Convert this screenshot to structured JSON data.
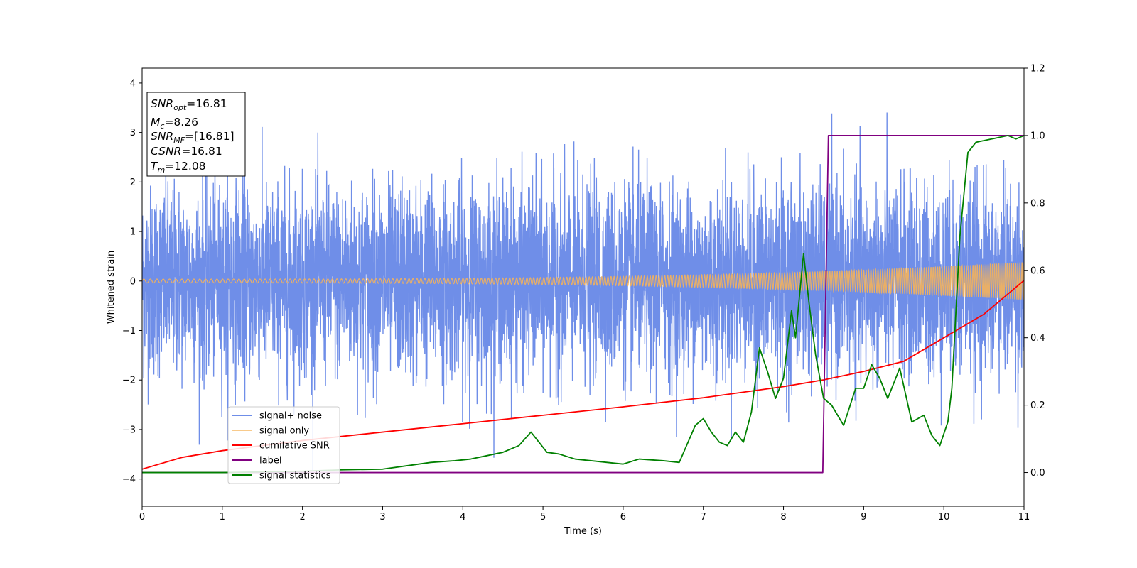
{
  "chart_data": {
    "type": "line",
    "xlabel": "Time (s)",
    "ylabel": "Whitened strain",
    "xlim": [
      0,
      11
    ],
    "ylim_left": [
      -4.55,
      4.3
    ],
    "ylim_right": [
      -0.1,
      1.2
    ],
    "x_ticks": [
      0,
      1,
      2,
      3,
      4,
      5,
      6,
      7,
      8,
      9,
      10,
      11
    ],
    "y_left_ticks": [
      -4,
      -3,
      -2,
      -1,
      0,
      1,
      2,
      3,
      4
    ],
    "y_right_ticks": [
      0.0,
      0.2,
      0.4,
      0.6,
      0.8,
      1.0,
      1.2
    ],
    "legend_position": "lower-left",
    "grid": false,
    "annotation_box": {
      "position": "top-left",
      "lines": [
        {
          "var": "SNR",
          "sub": "opt",
          "value": "=16.81"
        },
        {
          "var": "M",
          "sub": "c",
          "value": "=8.26"
        },
        {
          "var": "SNR",
          "sub": "MF",
          "value": "=[16.81]"
        },
        {
          "var": "CSNR",
          "sub": "",
          "value": "=16.81"
        },
        {
          "var": "T",
          "sub": "m",
          "value": "=12.08"
        }
      ]
    },
    "series": [
      {
        "name": "signal+ noise",
        "axis": "left",
        "color": "#6f8ee8",
        "description_kind": "noise",
        "std": 1.0,
        "range_approx": [
          -3.9,
          3.9
        ]
      },
      {
        "name": "signal only",
        "axis": "left",
        "color": "#f5b35a",
        "description_kind": "chirp",
        "amplitude_start": 0.04,
        "amplitude_end": 0.38
      },
      {
        "name": "cumilative SNR",
        "axis": "right",
        "color": "#ff0000",
        "x": [
          0,
          0.5,
          1,
          2,
          3,
          4,
          5,
          6,
          7,
          8,
          8.5,
          9,
          9.5,
          10,
          10.5,
          11
        ],
        "y": [
          0.01,
          0.045,
          0.065,
          0.095,
          0.12,
          0.145,
          0.17,
          0.195,
          0.222,
          0.255,
          0.275,
          0.3,
          0.33,
          0.4,
          0.47,
          0.57
        ]
      },
      {
        "name": "label",
        "axis": "right",
        "color": "#800080",
        "x": [
          0,
          8.49,
          8.56,
          11
        ],
        "y": [
          0.0,
          0.0,
          1.0,
          1.0
        ]
      },
      {
        "name": "signal statistics",
        "axis": "right",
        "color": "#008000",
        "x": [
          0,
          1,
          2,
          2.5,
          3,
          3.3,
          3.6,
          3.9,
          4.1,
          4.3,
          4.5,
          4.7,
          4.85,
          4.95,
          5.05,
          5.2,
          5.4,
          5.6,
          5.8,
          6.0,
          6.2,
          6.5,
          6.7,
          6.9,
          7.0,
          7.1,
          7.2,
          7.3,
          7.4,
          7.5,
          7.6,
          7.7,
          7.8,
          7.9,
          8.0,
          8.1,
          8.15,
          8.25,
          8.32,
          8.4,
          8.5,
          8.6,
          8.75,
          8.9,
          9.0,
          9.1,
          9.2,
          9.3,
          9.45,
          9.6,
          9.75,
          9.85,
          9.95,
          10.05,
          10.1,
          10.2,
          10.3,
          10.4,
          10.6,
          10.8,
          10.9,
          11
        ],
        "y": [
          0.0,
          0.0,
          0.004,
          0.008,
          0.01,
          0.02,
          0.03,
          0.035,
          0.04,
          0.05,
          0.06,
          0.08,
          0.12,
          0.09,
          0.06,
          0.055,
          0.04,
          0.035,
          0.03,
          0.025,
          0.04,
          0.035,
          0.03,
          0.14,
          0.16,
          0.12,
          0.09,
          0.08,
          0.12,
          0.09,
          0.18,
          0.37,
          0.3,
          0.22,
          0.28,
          0.48,
          0.4,
          0.65,
          0.5,
          0.35,
          0.22,
          0.2,
          0.14,
          0.25,
          0.25,
          0.32,
          0.28,
          0.22,
          0.31,
          0.15,
          0.17,
          0.11,
          0.08,
          0.15,
          0.25,
          0.7,
          0.95,
          0.98,
          0.99,
          1.0,
          0.99,
          1.0
        ]
      }
    ]
  }
}
